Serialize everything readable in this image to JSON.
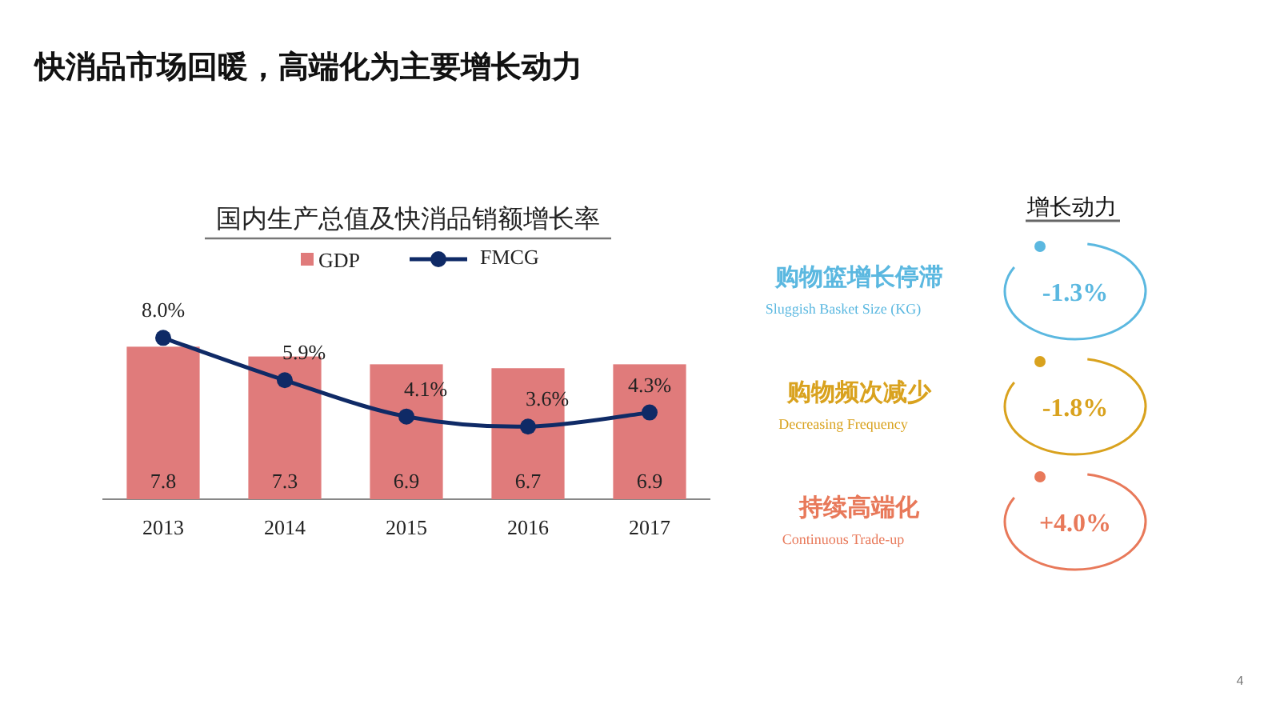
{
  "chart_data": [
    {
      "type": "bar",
      "title": "快消品市场回暖，高端化为主要增长动力",
      "subtitle": "国内生产总值及快消品销额增长率",
      "categories": [
        "2013",
        "2014",
        "2015",
        "2016",
        "2017"
      ],
      "series": [
        {
          "name": "GDP",
          "type": "bar",
          "color": "#e07b7b",
          "values": [
            7.8,
            7.3,
            6.9,
            6.7,
            6.9
          ],
          "value_labels": [
            "7.8",
            "7.3",
            "6.9",
            "6.7",
            "6.9"
          ]
        },
        {
          "name": "FMCG",
          "type": "line",
          "axis": "y2",
          "color": "#0f2a66",
          "marker": "circle",
          "values": [
            8.0,
            5.9,
            4.1,
            3.6,
            4.3
          ],
          "value_labels": [
            "8.0%",
            "5.9%",
            "4.1%",
            "3.6%",
            "4.3%"
          ]
        }
      ],
      "legend": "top"
    },
    {
      "type": "other",
      "title": "增长动力",
      "categories": [
        "购物篮增长停滞",
        "购物频次减少",
        "持续高端化"
      ],
      "value_labels": [
        "-1.3%",
        "-1.8%",
        "+4.0%"
      ],
      "colors": [
        "#5bb8e0",
        "#d9a21e",
        "#e8795a"
      ],
      "annotations": [
        "Sluggish Basket Size (KG)",
        "Decreasing  Frequency",
        "Continuous Trade-up",
        "4"
      ]
    }
  ]
}
